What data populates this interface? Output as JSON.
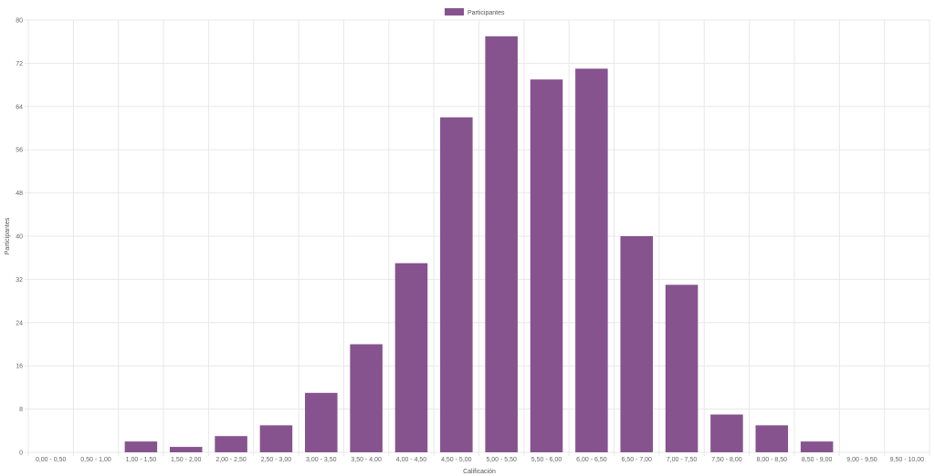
{
  "chart_data": {
    "type": "bar",
    "categories": [
      "0,00 - 0,50",
      "0,50 - 1,00",
      "1,00 - 1,50",
      "1,50 - 2,00",
      "2,00 - 2,50",
      "2,50 - 3,00",
      "3,00 - 3,50",
      "3,50 - 4,00",
      "4,00 - 4,50",
      "4,50 - 5,00",
      "5,00 - 5,50",
      "5,50 - 6,00",
      "6,00 - 6,50",
      "6,50 - 7,00",
      "7,00 - 7,50",
      "7,50 - 8,00",
      "8,00 - 8,50",
      "8,50 - 9,00",
      "9,00 - 9,50",
      "9,50 - 10,00"
    ],
    "series": [
      {
        "name": "Participantes",
        "values": [
          0,
          0,
          2,
          1,
          3,
          5,
          11,
          20,
          35,
          62,
          77,
          69,
          71,
          40,
          31,
          7,
          5,
          2,
          0,
          0
        ]
      }
    ],
    "xlabel": "Calificación",
    "ylabel": "Participantes",
    "ylim": [
      0,
      80
    ],
    "yticks": [
      0,
      8,
      16,
      24,
      32,
      40,
      48,
      56,
      64,
      72,
      80
    ],
    "grid": true,
    "legend_position": "top-center",
    "bar_color": "#86538f"
  }
}
